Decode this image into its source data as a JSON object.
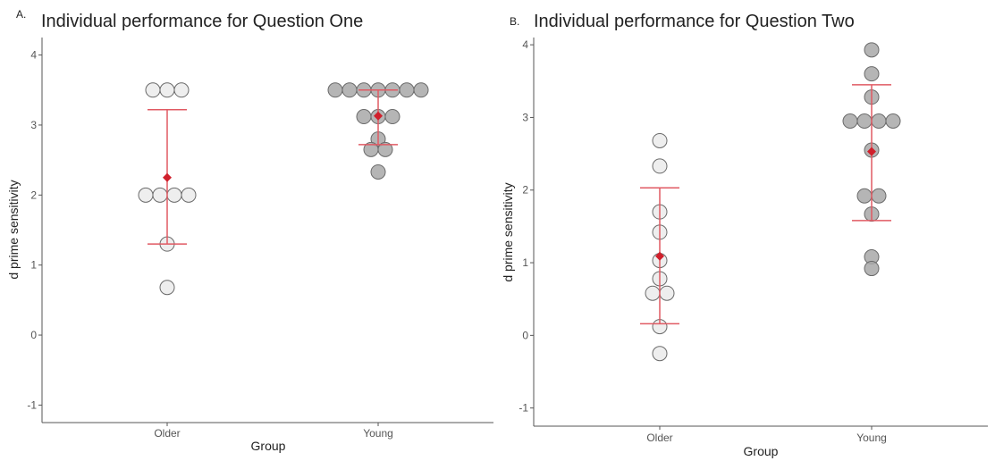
{
  "chart_data": [
    {
      "type": "scatter",
      "panel_label": "A.",
      "title": "Individual performance for Question One",
      "xlabel": "Group",
      "ylabel": "d prime sensitivity",
      "categories": [
        "Older",
        "Young"
      ],
      "ylim": [
        -1.25,
        4.25
      ],
      "yticks": [
        -1,
        0,
        1,
        2,
        3,
        4
      ],
      "grid": false,
      "point_colors": {
        "Older": "#ebebeb",
        "Young": "#a8a8a8"
      },
      "summary_color": "#e05a63",
      "series": [
        {
          "name": "Older",
          "points": [
            3.5,
            3.5,
            3.5,
            2.0,
            2.0,
            2.0,
            2.0,
            1.3,
            0.68
          ],
          "mean": 2.25,
          "error": [
            1.3,
            3.22
          ]
        },
        {
          "name": "Young",
          "points": [
            3.5,
            3.5,
            3.5,
            3.5,
            3.5,
            3.5,
            3.5,
            3.12,
            3.12,
            3.12,
            2.8,
            2.65,
            2.65,
            2.33
          ],
          "mean": 3.13,
          "error": [
            2.72,
            3.5
          ]
        }
      ]
    },
    {
      "type": "scatter",
      "panel_label": "B.",
      "title": "Individual performance for Question Two",
      "xlabel": "Group",
      "ylabel": "d prime sensitivity",
      "categories": [
        "Older",
        "Young"
      ],
      "ylim": [
        -1.25,
        4.1
      ],
      "yticks": [
        -1,
        0,
        1,
        2,
        3,
        4
      ],
      "grid": false,
      "point_colors": {
        "Older": "#ebebeb",
        "Young": "#a8a8a8"
      },
      "summary_color": "#e05a63",
      "series": [
        {
          "name": "Older",
          "points": [
            2.68,
            2.33,
            1.7,
            1.42,
            1.03,
            0.78,
            0.58,
            0.58,
            0.12,
            -0.25
          ],
          "mean": 1.09,
          "error": [
            0.16,
            2.03
          ]
        },
        {
          "name": "Young",
          "points": [
            3.93,
            3.6,
            3.28,
            2.95,
            2.95,
            2.95,
            2.95,
            2.55,
            1.92,
            1.92,
            1.67,
            1.08,
            0.92
          ],
          "mean": 2.53,
          "error": [
            1.58,
            3.45
          ]
        }
      ]
    }
  ]
}
